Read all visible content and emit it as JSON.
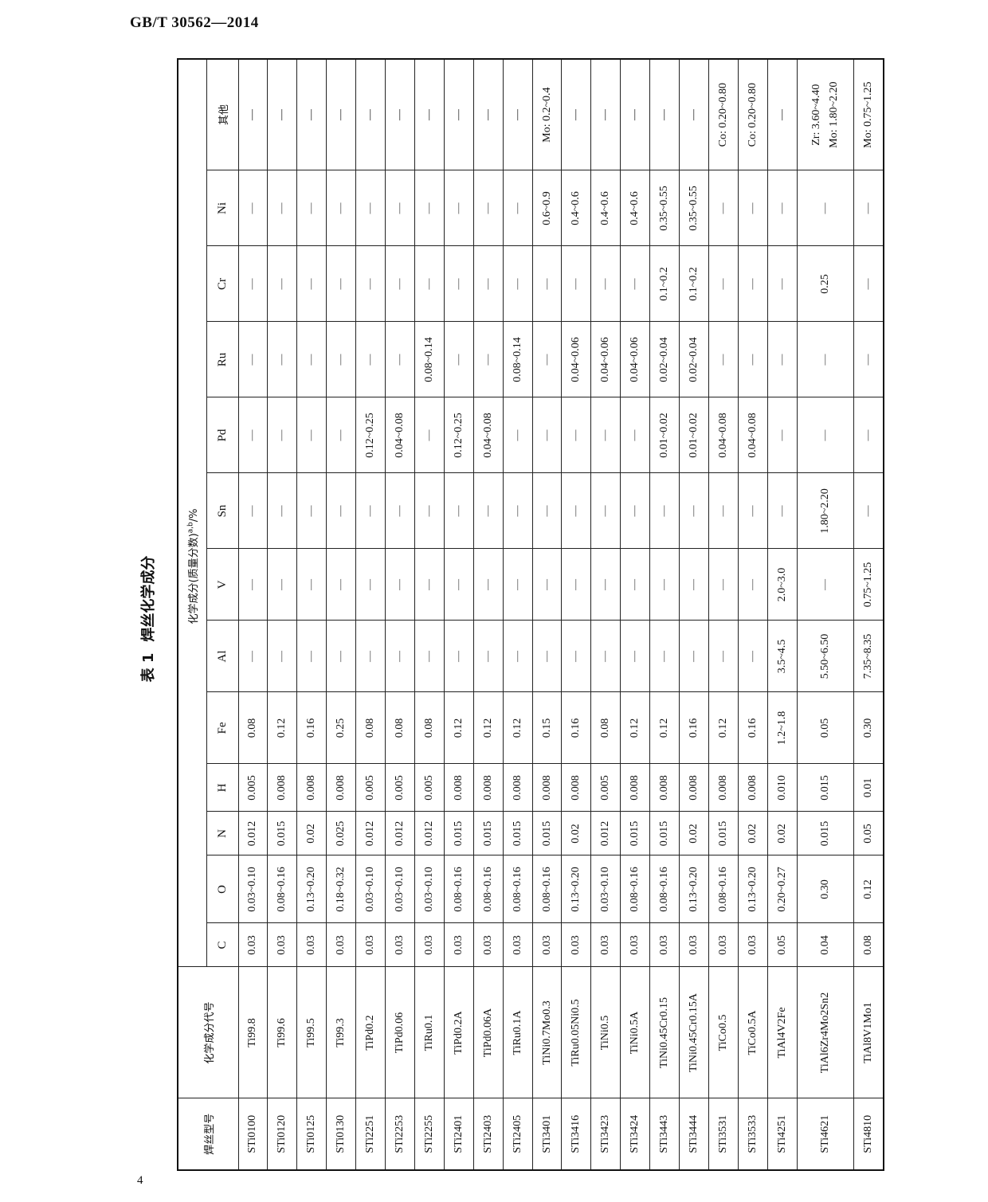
{
  "header": {
    "standard_code": "GB/T 30562—2014"
  },
  "footer": {
    "page_number": "4"
  },
  "table": {
    "number": "表 1",
    "title": "焊丝化学成分",
    "col_model": "焊丝型号",
    "col_code": "化学成分代号",
    "col_group": "化学成分(质量分数)",
    "col_group_note": "a,b",
    "col_group_unit": "/%",
    "elements": [
      "C",
      "O",
      "N",
      "H",
      "Fe",
      "Al",
      "V",
      "Sn",
      "Pd",
      "Ru",
      "Cr",
      "Ni",
      "其他"
    ],
    "rows": [
      [
        "STi0100",
        "Ti99.8",
        "0.03",
        "0.03~0.10",
        "0.012",
        "0.005",
        "0.08",
        "—",
        "—",
        "—",
        "—",
        "—",
        "—",
        "—",
        [
          "—"
        ]
      ],
      [
        "STi0120",
        "Ti99.6",
        "0.03",
        "0.08~0.16",
        "0.015",
        "0.008",
        "0.12",
        "—",
        "—",
        "—",
        "—",
        "—",
        "—",
        "—",
        [
          "—"
        ]
      ],
      [
        "STi0125",
        "Ti99.5",
        "0.03",
        "0.13~0.20",
        "0.02",
        "0.008",
        "0.16",
        "—",
        "—",
        "—",
        "—",
        "—",
        "—",
        "—",
        [
          "—"
        ]
      ],
      [
        "STi0130",
        "Ti99.3",
        "0.03",
        "0.18~0.32",
        "0.025",
        "0.008",
        "0.25",
        "—",
        "—",
        "—",
        "—",
        "—",
        "—",
        "—",
        [
          "—"
        ]
      ],
      [
        "STi2251",
        "TiPd0.2",
        "0.03",
        "0.03~0.10",
        "0.012",
        "0.005",
        "0.08",
        "—",
        "—",
        "—",
        "0.12~0.25",
        "—",
        "—",
        "—",
        [
          "—"
        ]
      ],
      [
        "STi2253",
        "TiPd0.06",
        "0.03",
        "0.03~0.10",
        "0.012",
        "0.005",
        "0.08",
        "—",
        "—",
        "—",
        "0.04~0.08",
        "—",
        "—",
        "—",
        [
          "—"
        ]
      ],
      [
        "STi2255",
        "TiRu0.1",
        "0.03",
        "0.03~0.10",
        "0.012",
        "0.005",
        "0.08",
        "—",
        "—",
        "—",
        "—",
        "0.08~0.14",
        "—",
        "—",
        [
          "—"
        ]
      ],
      [
        "STi2401",
        "TiPd0.2A",
        "0.03",
        "0.08~0.16",
        "0.015",
        "0.008",
        "0.12",
        "—",
        "—",
        "—",
        "0.12~0.25",
        "—",
        "—",
        "—",
        [
          "—"
        ]
      ],
      [
        "STi2403",
        "TiPd0.06A",
        "0.03",
        "0.08~0.16",
        "0.015",
        "0.008",
        "0.12",
        "—",
        "—",
        "—",
        "0.04~0.08",
        "—",
        "—",
        "—",
        [
          "—"
        ]
      ],
      [
        "STi2405",
        "TiRu0.1A",
        "0.03",
        "0.08~0.16",
        "0.015",
        "0.008",
        "0.12",
        "—",
        "—",
        "—",
        "—",
        "0.08~0.14",
        "—",
        "—",
        [
          "—"
        ]
      ],
      [
        "STi3401",
        "TiNi0.7Mo0.3",
        "0.03",
        "0.08~0.16",
        "0.015",
        "0.008",
        "0.15",
        "—",
        "—",
        "—",
        "—",
        "—",
        "—",
        "0.6~0.9",
        [
          "Mo: 0.2~0.4"
        ]
      ],
      [
        "STi3416",
        "TiRu0.05Ni0.5",
        "0.03",
        "0.13~0.20",
        "0.02",
        "0.008",
        "0.16",
        "—",
        "—",
        "—",
        "—",
        "0.04~0.06",
        "—",
        "0.4~0.6",
        [
          "—"
        ]
      ],
      [
        "STi3423",
        "TiNi0.5",
        "0.03",
        "0.03~0.10",
        "0.012",
        "0.005",
        "0.08",
        "—",
        "—",
        "—",
        "—",
        "0.04~0.06",
        "—",
        "0.4~0.6",
        [
          "—"
        ]
      ],
      [
        "STi3424",
        "TiNi0.5A",
        "0.03",
        "0.08~0.16",
        "0.015",
        "0.008",
        "0.12",
        "—",
        "—",
        "—",
        "—",
        "0.04~0.06",
        "—",
        "0.4~0.6",
        [
          "—"
        ]
      ],
      [
        "STi3443",
        "TiNi0.45Cr0.15",
        "0.03",
        "0.08~0.16",
        "0.015",
        "0.008",
        "0.12",
        "—",
        "—",
        "—",
        "0.01~0.02",
        "0.02~0.04",
        "0.1~0.2",
        "0.35~0.55",
        [
          "—"
        ]
      ],
      [
        "STi3444",
        "TiNi0.45Cr0.15A",
        "0.03",
        "0.13~0.20",
        "0.02",
        "0.008",
        "0.16",
        "—",
        "—",
        "—",
        "0.01~0.02",
        "0.02~0.04",
        "0.1~0.2",
        "0.35~0.55",
        [
          "—"
        ]
      ],
      [
        "STi3531",
        "TiCo0.5",
        "0.03",
        "0.08~0.16",
        "0.015",
        "0.008",
        "0.12",
        "—",
        "—",
        "—",
        "0.04~0.08",
        "—",
        "—",
        "—",
        [
          "Co: 0.20~0.80"
        ]
      ],
      [
        "STi3533",
        "TiCo0.5A",
        "0.03",
        "0.13~0.20",
        "0.02",
        "0.008",
        "0.16",
        "—",
        "—",
        "—",
        "0.04~0.08",
        "—",
        "—",
        "—",
        [
          "Co: 0.20~0.80"
        ]
      ],
      [
        "STi4251",
        "TiAl4V2Fe",
        "0.05",
        "0.20~0.27",
        "0.02",
        "0.010",
        "1.2~1.8",
        "3.5~4.5",
        "2.0~3.0",
        "—",
        "—",
        "—",
        "—",
        "—",
        [
          "—"
        ]
      ],
      [
        "STi4621",
        "TiAl6Zr4Mo2Sn2",
        "0.04",
        "0.30",
        "0.015",
        "0.015",
        "0.05",
        "5.50~6.50",
        "—",
        "1.80~2.20",
        "—",
        "—",
        "0.25",
        "—",
        [
          "Zr: 3.60~4.40",
          "Mo: 1.80~2.20"
        ]
      ],
      [
        "STi4810",
        "TiAl8V1Mo1",
        "0.08",
        "0.12",
        "0.05",
        "0.01",
        "0.30",
        "7.35~8.35",
        "0.75~1.25",
        "—",
        "—",
        "—",
        "—",
        "—",
        [
          "Mo: 0.75~1.25"
        ]
      ]
    ]
  }
}
